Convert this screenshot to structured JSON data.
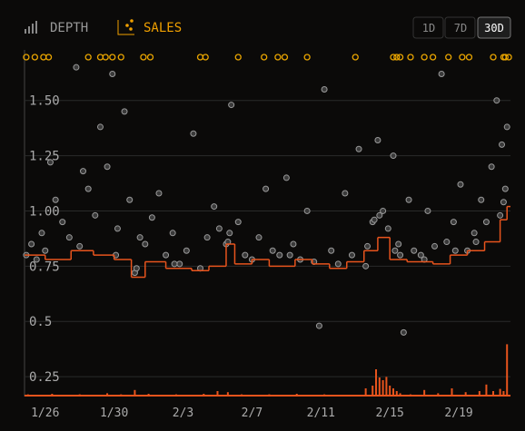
{
  "header": {
    "tabs": [
      "DEPTH",
      "SALES"
    ],
    "active_tab": "SALES",
    "ranges": [
      "1D",
      "7D",
      "30D"
    ],
    "active_range": "30D"
  },
  "chart_data": {
    "type": "scatter",
    "xlim": [
      24.8,
      53.0
    ],
    "ylim": [
      0.16,
      1.7
    ],
    "xticks": [
      {
        "value": 26,
        "label": "1/26"
      },
      {
        "value": 30,
        "label": "1/30"
      },
      {
        "value": 34,
        "label": "2/3"
      },
      {
        "value": 38,
        "label": "2/7"
      },
      {
        "value": 42,
        "label": "2/11"
      },
      {
        "value": 46,
        "label": "2/15"
      },
      {
        "value": 50,
        "label": "2/19"
      }
    ],
    "yticks": [
      0.25,
      0.5,
      {
        "value": 0.75,
        "label": "0.75"
      },
      {
        "value": 1.0,
        "label": "1.00"
      },
      1.25,
      {
        "value": 1.5,
        "label": "1.50"
      }
    ],
    "grid": true,
    "series": [
      {
        "name": "sales",
        "color": "#9a9a9a",
        "x": [
          24.9,
          25.2,
          25.5,
          25.8,
          26.3,
          26.6,
          27.0,
          27.4,
          27.8,
          28.2,
          28.5,
          28.9,
          29.2,
          29.6,
          29.9,
          30.2,
          30.6,
          30.9,
          31.2,
          31.5,
          31.8,
          32.2,
          32.6,
          33.0,
          33.4,
          33.8,
          34.2,
          34.6,
          35.0,
          35.4,
          35.8,
          36.1,
          36.5,
          36.8,
          37.2,
          37.6,
          38.0,
          38.4,
          38.8,
          39.2,
          39.6,
          40.0,
          40.4,
          40.8,
          41.2,
          41.6,
          41.9,
          42.2,
          42.6,
          43.0,
          43.4,
          43.8,
          44.2,
          44.6,
          45.0,
          45.3,
          45.6,
          45.9,
          46.2,
          46.5,
          46.8,
          47.1,
          47.4,
          47.8,
          48.2,
          48.6,
          49.0,
          49.3,
          49.7,
          50.1,
          50.5,
          50.9,
          51.3,
          51.6,
          51.9,
          52.2,
          52.5,
          52.7,
          52.8,
          26.0,
          28.0,
          30.1,
          31.3,
          33.5,
          36.6,
          36.7,
          40.2,
          44.7,
          45.1,
          45.4,
          46.3,
          46.6,
          48.0,
          49.8,
          51.0,
          52.4,
          52.6
        ],
        "values": [
          0.8,
          0.85,
          0.78,
          0.9,
          1.22,
          1.05,
          0.95,
          0.88,
          1.65,
          1.18,
          1.1,
          0.98,
          1.38,
          1.2,
          1.62,
          0.92,
          1.45,
          1.05,
          0.72,
          0.88,
          0.85,
          0.97,
          1.08,
          0.8,
          0.9,
          0.76,
          0.82,
          1.35,
          0.74,
          0.88,
          1.02,
          0.92,
          0.85,
          1.48,
          0.95,
          0.8,
          0.78,
          0.88,
          1.1,
          0.82,
          0.8,
          1.15,
          0.85,
          0.78,
          1.0,
          0.77,
          0.48,
          1.55,
          0.82,
          0.76,
          1.08,
          0.8,
          1.28,
          0.75,
          0.95,
          1.32,
          1.0,
          0.92,
          1.25,
          0.85,
          0.45,
          1.05,
          0.82,
          0.8,
          1.0,
          0.84,
          1.62,
          0.86,
          0.95,
          1.12,
          0.82,
          0.9,
          1.05,
          0.95,
          1.2,
          1.5,
          1.3,
          1.1,
          1.38,
          0.82,
          0.84,
          0.8,
          0.74,
          0.76,
          0.86,
          0.9,
          0.8,
          0.84,
          0.96,
          0.98,
          0.82,
          0.8,
          0.78,
          0.82,
          0.86,
          0.98,
          1.04
        ]
      },
      {
        "name": "floor",
        "color": "#e8541d",
        "x": [
          24.8,
          26.0,
          27.5,
          28.8,
          30.0,
          31.0,
          31.8,
          33.0,
          34.5,
          35.5,
          36.5,
          37.0,
          38.0,
          39.0,
          40.5,
          41.5,
          42.5,
          43.5,
          44.5,
          45.3,
          46.0,
          47.0,
          48.5,
          49.5,
          50.5,
          51.5,
          52.4,
          52.8,
          53.0
        ],
        "values": [
          0.8,
          0.78,
          0.82,
          0.8,
          0.78,
          0.7,
          0.77,
          0.74,
          0.73,
          0.75,
          0.85,
          0.76,
          0.78,
          0.75,
          0.78,
          0.76,
          0.74,
          0.77,
          0.82,
          0.88,
          0.78,
          0.77,
          0.76,
          0.8,
          0.82,
          0.86,
          0.96,
          1.02,
          1.02
        ]
      },
      {
        "name": "volume",
        "color": "#e8541d",
        "axis": "y2",
        "x": [
          25.0,
          25.6,
          26.4,
          27.2,
          28.0,
          28.8,
          29.6,
          30.4,
          31.2,
          32.0,
          32.8,
          33.6,
          34.4,
          35.2,
          36.0,
          36.6,
          37.4,
          38.2,
          39.0,
          39.8,
          40.6,
          41.4,
          42.2,
          43.0,
          43.8,
          44.6,
          45.0,
          45.2,
          45.4,
          45.6,
          45.8,
          46.0,
          46.2,
          46.4,
          46.6,
          47.2,
          48.0,
          48.8,
          49.6,
          50.4,
          51.2,
          51.6,
          52.0,
          52.4,
          52.6,
          52.8
        ],
        "values": [
          0.4,
          0.3,
          0.5,
          0.3,
          0.4,
          0.3,
          0.6,
          0.4,
          1.2,
          0.5,
          0.3,
          0.4,
          0.3,
          0.5,
          1.0,
          0.8,
          0.4,
          0.3,
          0.4,
          0.3,
          0.5,
          0.3,
          0.4,
          0.3,
          0.3,
          1.5,
          2.0,
          5.0,
          3.5,
          3.0,
          3.6,
          2.0,
          1.5,
          1.0,
          0.6,
          0.4,
          1.2,
          0.6,
          1.5,
          0.8,
          1.0,
          2.2,
          1.0,
          1.4,
          1.0,
          9.6
        ]
      },
      {
        "name": "outliers",
        "color": "#e8a400",
        "x": [
          24.9,
          25.4,
          25.9,
          26.2,
          28.5,
          29.2,
          29.5,
          29.9,
          30.4,
          31.7,
          32.1,
          35.0,
          35.3,
          37.2,
          38.7,
          39.5,
          39.9,
          41.2,
          44.0,
          46.2,
          46.4,
          46.6,
          47.2,
          48.0,
          48.5,
          49.4,
          50.2,
          50.6,
          52.0,
          52.6,
          52.7,
          52.9
        ]
      }
    ],
    "y2lim": [
      0,
      10
    ]
  }
}
